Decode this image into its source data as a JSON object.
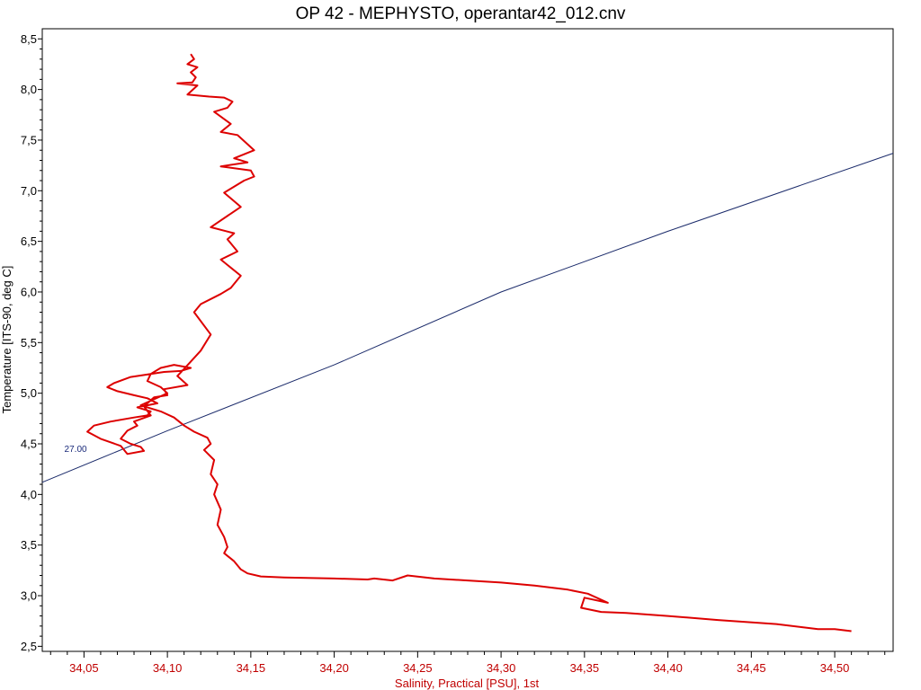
{
  "chart_data": {
    "type": "line",
    "title": "OP 42 - MEPHYSTO, operantar42_012.cnv",
    "xlabel": "Salinity, Practical [PSU], 1st",
    "ylabel": "Temperature [ITS-90, deg C]",
    "xlim": [
      34.025,
      34.535
    ],
    "ylim": [
      2.45,
      8.6
    ],
    "x_ticks": [
      "34,05",
      "34,10",
      "34,15",
      "34,20",
      "34,25",
      "34,30",
      "34,35",
      "34,40",
      "34,45",
      "34,50"
    ],
    "y_ticks": [
      "2,5",
      "3,0",
      "3,5",
      "4,0",
      "4,5",
      "5,0",
      "5,5",
      "6,0",
      "6,5",
      "7,0",
      "7,5",
      "8,0",
      "8,5"
    ],
    "grid": false,
    "colors": {
      "profile": "#dd0000",
      "contour": "#1a2a6a",
      "x_axis_text": "#c00000"
    },
    "series": [
      {
        "color": "#dd0000",
        "x": [
          34.114,
          34.116,
          34.112,
          34.118,
          34.114,
          34.117,
          34.115,
          34.106,
          34.118,
          34.112,
          34.125,
          34.134,
          34.139,
          34.136,
          34.128,
          34.138,
          34.132,
          34.142,
          34.152,
          34.14,
          34.148,
          34.132,
          34.15,
          34.152,
          34.146,
          34.134,
          34.144,
          34.126,
          34.14,
          34.136,
          34.142,
          34.132,
          34.144,
          34.138,
          34.132,
          34.12,
          34.116,
          34.126,
          34.12,
          34.11,
          34.106,
          34.112,
          34.098,
          34.1,
          34.092,
          34.086,
          34.09,
          34.08,
          34.082,
          34.076,
          34.072,
          34.078,
          34.084,
          34.086,
          34.076,
          34.072,
          34.06,
          34.052,
          34.056,
          34.066,
          34.08,
          34.088,
          34.09,
          34.082,
          34.094,
          34.088,
          34.08,
          34.07,
          34.064,
          34.068,
          34.078,
          34.09,
          34.098,
          34.108,
          34.114,
          34.104,
          34.096,
          34.09,
          34.088,
          34.096,
          34.1,
          34.092,
          34.084,
          34.096,
          34.104,
          34.11,
          34.116,
          34.124,
          34.126,
          34.122,
          34.128,
          34.126,
          34.13,
          34.128,
          34.132,
          34.13,
          34.134,
          34.136,
          34.134,
          34.14,
          34.144,
          34.148,
          34.156,
          34.17,
          34.2,
          34.22,
          34.224,
          34.235,
          34.244,
          34.26,
          34.28,
          34.3,
          34.32,
          34.34,
          34.352,
          34.364,
          34.35,
          34.348,
          34.36,
          34.375,
          34.4,
          34.43,
          34.465,
          34.48,
          34.49,
          34.5,
          34.51
        ],
        "y": [
          8.35,
          8.3,
          8.25,
          8.22,
          8.17,
          8.12,
          8.07,
          8.06,
          8.04,
          7.95,
          7.93,
          7.92,
          7.88,
          7.82,
          7.78,
          7.66,
          7.58,
          7.55,
          7.4,
          7.32,
          7.28,
          7.24,
          7.2,
          7.14,
          7.1,
          6.98,
          6.84,
          6.64,
          6.58,
          6.52,
          6.4,
          6.32,
          6.16,
          6.04,
          5.98,
          5.88,
          5.8,
          5.58,
          5.42,
          5.24,
          5.17,
          5.08,
          5.04,
          4.98,
          4.96,
          4.87,
          4.78,
          4.72,
          4.68,
          4.63,
          4.55,
          4.5,
          4.47,
          4.43,
          4.4,
          4.48,
          4.55,
          4.62,
          4.68,
          4.72,
          4.76,
          4.78,
          4.82,
          4.86,
          4.9,
          4.95,
          4.98,
          5.02,
          5.06,
          5.1,
          5.16,
          5.19,
          5.21,
          5.22,
          5.25,
          5.28,
          5.25,
          5.19,
          5.12,
          5.06,
          5.0,
          4.94,
          4.88,
          4.82,
          4.76,
          4.68,
          4.62,
          4.56,
          4.5,
          4.44,
          4.34,
          4.2,
          4.1,
          4.0,
          3.85,
          3.7,
          3.58,
          3.48,
          3.42,
          3.34,
          3.26,
          3.22,
          3.19,
          3.18,
          3.17,
          3.16,
          3.17,
          3.15,
          3.2,
          3.17,
          3.15,
          3.13,
          3.1,
          3.06,
          3.02,
          2.93,
          2.98,
          2.88,
          2.84,
          2.83,
          2.8,
          2.76,
          2.72,
          2.69,
          2.67,
          2.67,
          2.65
        ]
      }
    ],
    "contours": [
      {
        "label": "27.00",
        "x": [
          34.025,
          34.1,
          34.2,
          34.3,
          34.4,
          34.535
        ],
        "y": [
          4.12,
          4.63,
          5.28,
          6.0,
          6.6,
          7.37
        ]
      }
    ]
  }
}
